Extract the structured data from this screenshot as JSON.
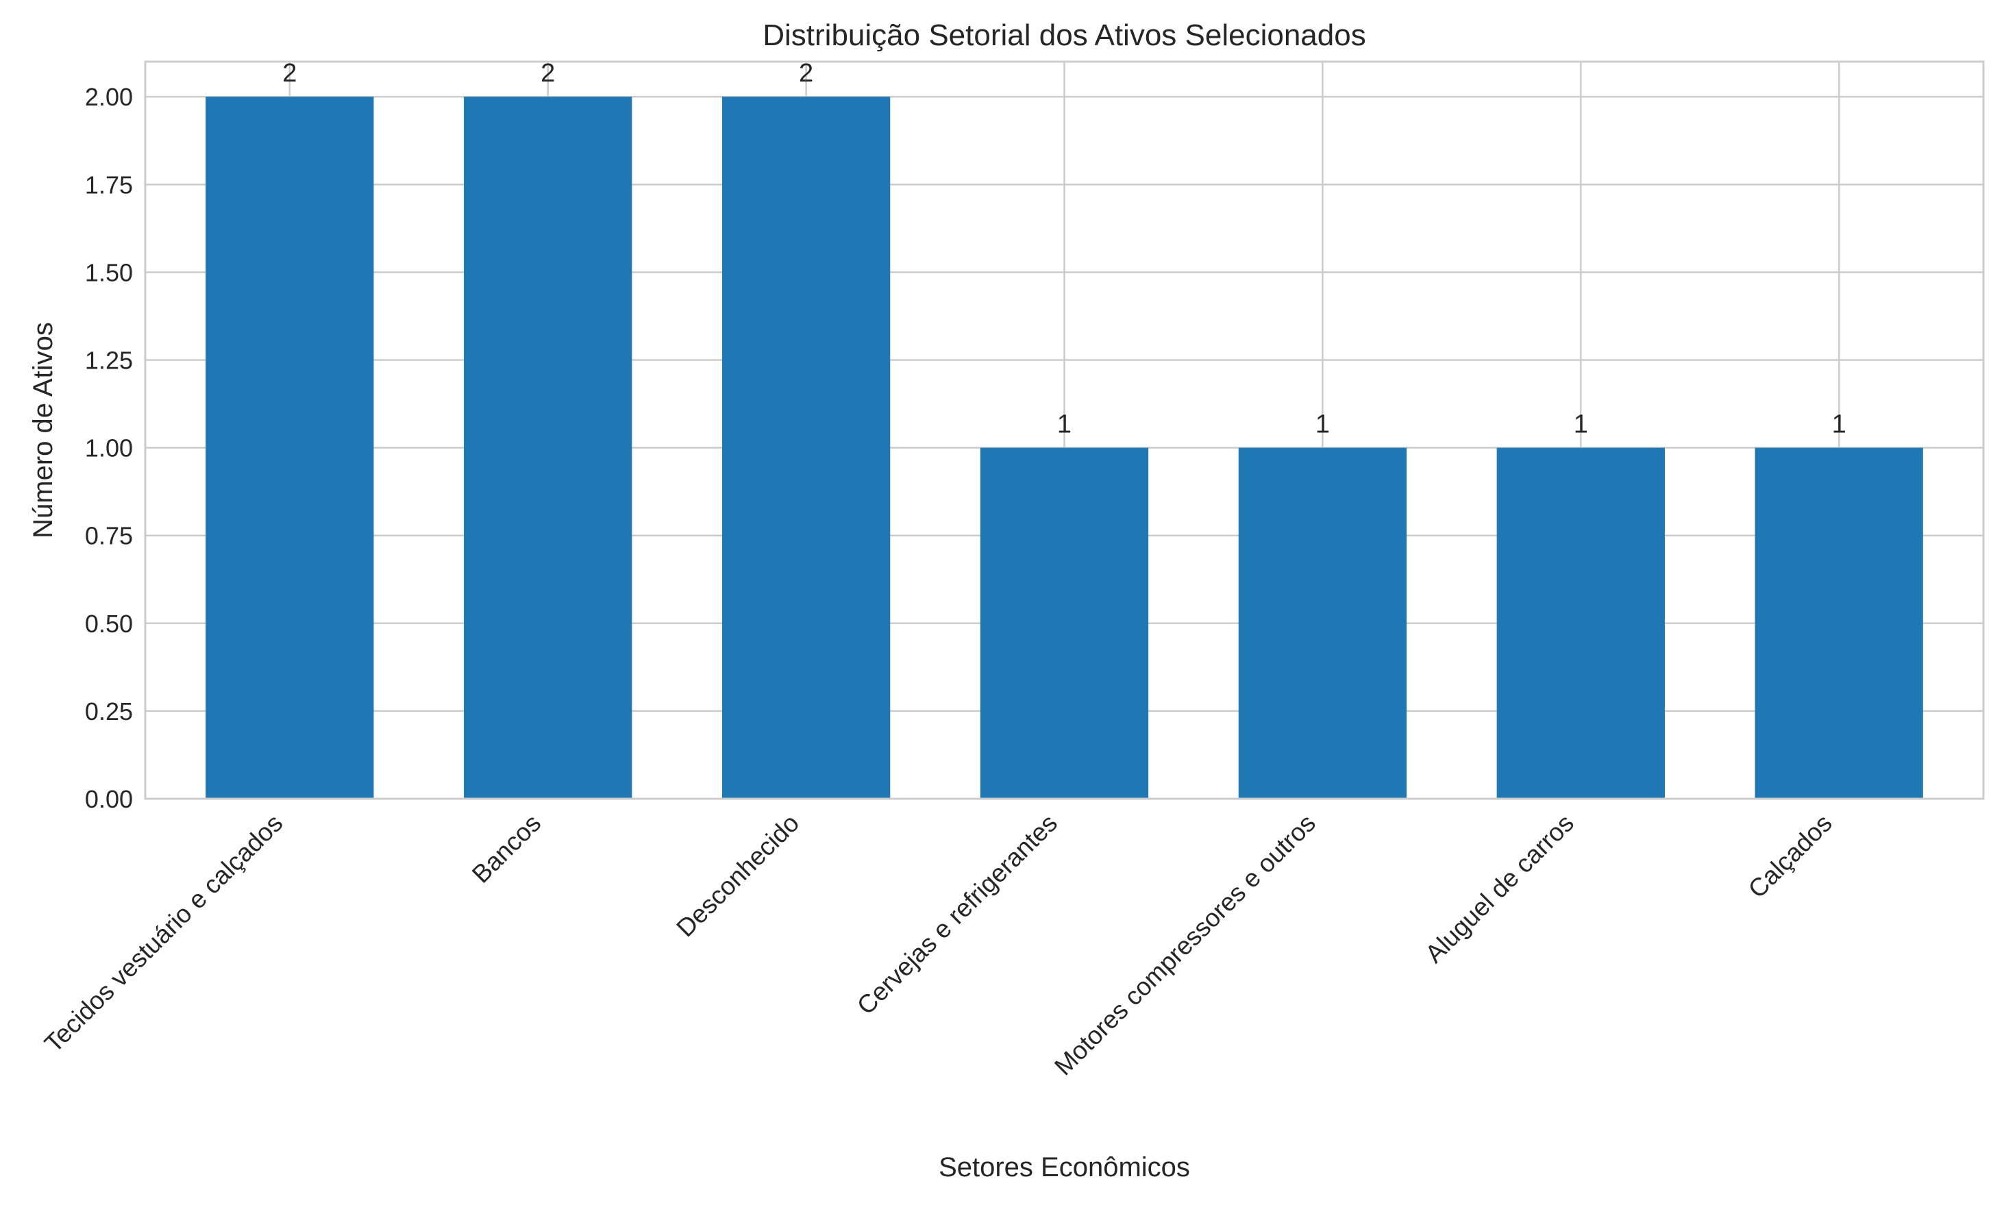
{
  "chart_data": {
    "type": "bar",
    "title": "Distribuição Setorial dos Ativos Selecionados",
    "xlabel": "Setores Econômicos",
    "ylabel": "Número de Ativos",
    "categories": [
      "Tecidos vestuário e calçados",
      "Bancos",
      "Desconhecido",
      "Cervejas e refrigerantes",
      "Motores compressores e outros",
      "Aluguel de carros",
      "Calçados"
    ],
    "values": [
      2,
      2,
      2,
      1,
      1,
      1,
      1
    ],
    "data_labels": [
      "2",
      "2",
      "2",
      "1",
      "1",
      "1",
      "1"
    ],
    "ylim": [
      0,
      2.1
    ],
    "yticks": [
      0,
      0.25,
      0.5,
      0.75,
      1.0,
      1.25,
      1.5,
      1.75,
      2.0
    ],
    "ytick_labels": [
      "0.00",
      "0.25",
      "0.50",
      "0.75",
      "1.00",
      "1.25",
      "1.50",
      "1.75",
      "2.00"
    ],
    "grid": true,
    "legend": "none",
    "colors": {
      "bar": "#1f77b4",
      "grid": "#cccccc",
      "text": "#262626"
    }
  }
}
